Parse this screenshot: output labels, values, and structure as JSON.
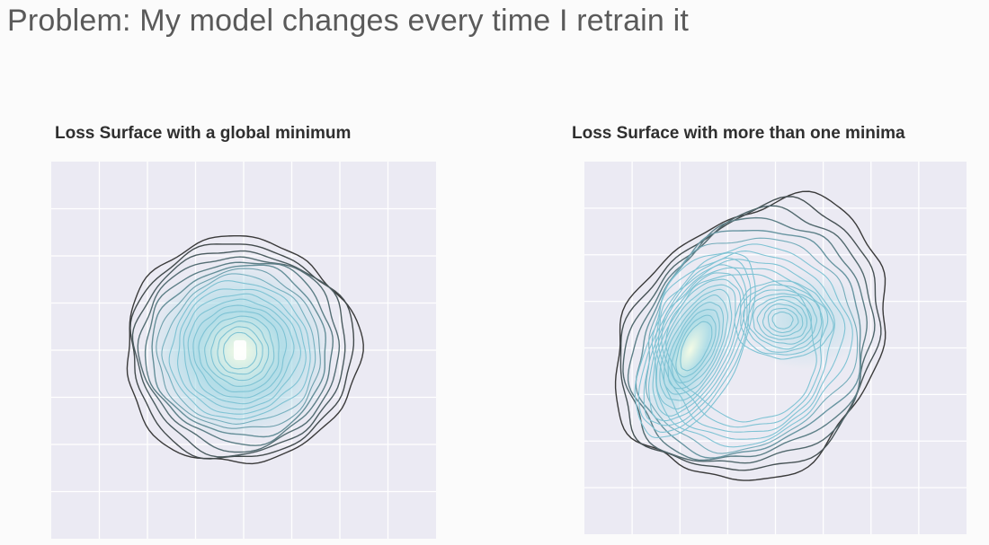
{
  "slide": {
    "title": "Problem: My model changes every time I retrain it"
  },
  "colors": {
    "plot_background": "#ebeaf3",
    "grid": "#ffffff",
    "outer_contour": "#3a3a3a",
    "inner_contour": "#7fc3d4",
    "density_core": "#f4fbe6",
    "density_mid": "#a9dbe6"
  },
  "chart_data": [
    {
      "type": "contour",
      "title": "Loss Surface with a global minimum",
      "xlabel": "",
      "ylabel": "",
      "grid": true,
      "minima": [
        {
          "x": 0.5,
          "y": 0.5
        }
      ],
      "contour_levels": 18,
      "xlim": [
        0,
        1
      ],
      "ylim": [
        0,
        1
      ]
    },
    {
      "type": "contour",
      "title": "Loss Surface with more than one minima",
      "xlabel": "",
      "ylabel": "",
      "grid": true,
      "minima": [
        {
          "x": 0.28,
          "y": 0.52
        },
        {
          "x": 0.5,
          "y": 0.55
        }
      ],
      "contour_levels": 20,
      "xlim": [
        0,
        1
      ],
      "ylim": [
        0,
        1
      ]
    }
  ]
}
